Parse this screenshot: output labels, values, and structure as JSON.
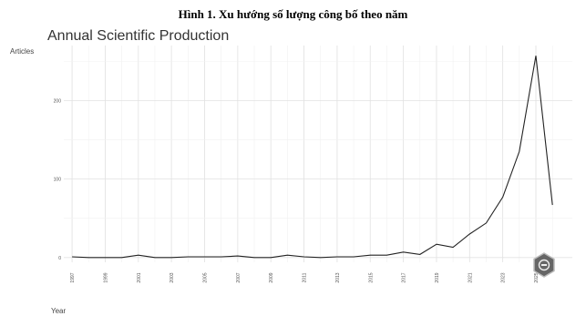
{
  "caption": "Hình 1. Xu hướng số lượng công bố theo năm",
  "chart_data": {
    "type": "line",
    "title": "Annual Scientific Production",
    "xlabel": "Year",
    "ylabel": "Articles",
    "x": [
      1997,
      1998,
      1999,
      2000,
      2001,
      2002,
      2003,
      2004,
      2005,
      2006,
      2007,
      2008,
      2009,
      2010,
      2011,
      2012,
      2013,
      2014,
      2015,
      2016,
      2017,
      2018,
      2019,
      2020,
      2021,
      2022,
      2023,
      2024,
      2025,
      2026
    ],
    "y": [
      1,
      0,
      0,
      0,
      3,
      0,
      0,
      1,
      1,
      1,
      2,
      0,
      0,
      3,
      1,
      0,
      1,
      1,
      3,
      3,
      7,
      4,
      17,
      13,
      30,
      44,
      77,
      135,
      257,
      67
    ],
    "xticks": [
      1997,
      1999,
      2001,
      2003,
      2005,
      2007,
      2009,
      2011,
      2013,
      2015,
      2017,
      2019,
      2021,
      2023,
      2025
    ],
    "yticks": [
      0,
      100,
      200
    ],
    "xlim": [
      1996.5,
      2027.2
    ],
    "ylim": [
      -6,
      270
    ],
    "grid": true,
    "line_color": "#222222"
  }
}
